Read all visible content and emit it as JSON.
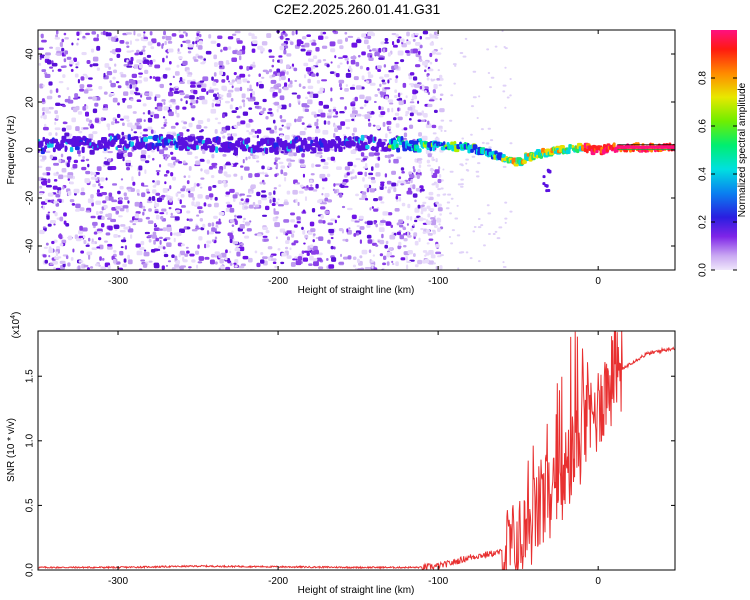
{
  "title": "C2E2.2025.260.01.41.G31",
  "chart_data": [
    {
      "type": "heatmap",
      "xlabel": "Height of straight line (km)",
      "ylabel": "Frequency (Hz)",
      "xlim": [
        -350,
        48
      ],
      "ylim": [
        -50,
        50
      ],
      "xticks": [
        -300,
        -200,
        -100,
        0
      ],
      "yticks": [
        -40,
        -20,
        0,
        20,
        40
      ],
      "colorbar": {
        "label": "Normalized spectral amplitude",
        "range": [
          0,
          1
        ],
        "ticks": [
          "0.0",
          "0.2",
          "0.4",
          "0.6",
          "0.8"
        ]
      },
      "signal_track": {
        "x": [
          -350,
          -300,
          -260,
          -220,
          -180,
          -150,
          -120,
          -100,
          -80,
          -70,
          -60,
          -50,
          -40,
          -30,
          -20,
          -10,
          0,
          10,
          48
        ],
        "y": [
          2,
          3,
          3,
          2,
          2,
          3,
          2,
          2,
          1,
          -1,
          -3,
          -5,
          -2,
          -1,
          0,
          1,
          0,
          1,
          1
        ]
      }
    },
    {
      "type": "line",
      "xlabel": "Height of straight line (km)",
      "ylabel": "SNR (10 * v/v)",
      "exponent_label": "(x10",
      "exponent_power": "4",
      "exponent_close": ")",
      "xlim": [
        -350,
        48
      ],
      "ylim": [
        0,
        1.85
      ],
      "xticks": [
        -300,
        -200,
        -100,
        0
      ],
      "yticks": [
        "0.0",
        "0.5",
        "1.0",
        "1.5"
      ],
      "series": [
        {
          "name": "SNR",
          "color": "#e83030",
          "x": [
            -350,
            -300,
            -250,
            -200,
            -150,
            -110,
            -100,
            -90,
            -80,
            -70,
            -60,
            -50,
            -45,
            -40,
            -35,
            -30,
            -25,
            -20,
            -15,
            -10,
            -5,
            0,
            5,
            10,
            20,
            30,
            40,
            48
          ],
          "y": [
            0.02,
            0.02,
            0.03,
            0.025,
            0.02,
            0.02,
            0.03,
            0.06,
            0.1,
            0.12,
            0.14,
            0.2,
            0.3,
            0.4,
            0.5,
            0.55,
            0.6,
            0.75,
            0.9,
            1.05,
            1.15,
            1.25,
            1.4,
            1.5,
            1.6,
            1.67,
            1.7,
            1.72
          ]
        }
      ]
    }
  ]
}
